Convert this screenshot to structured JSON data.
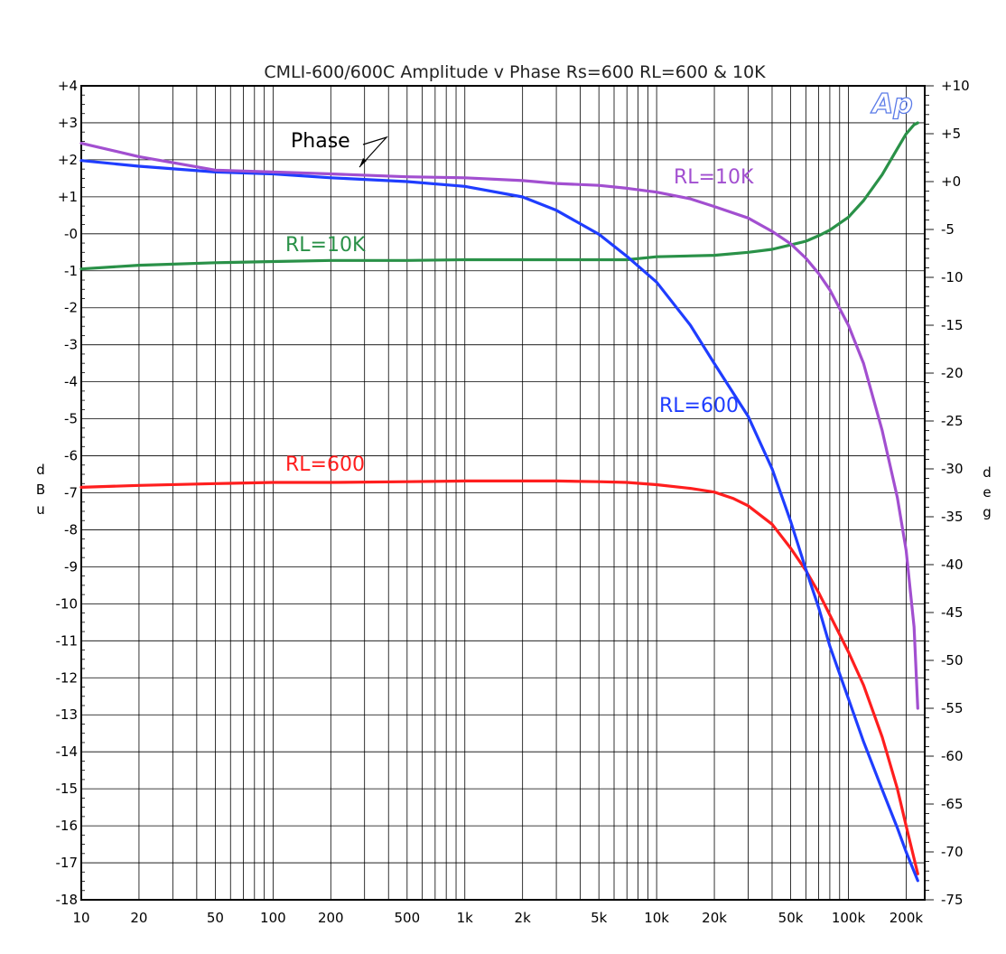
{
  "chart_data": {
    "type": "line",
    "title": "CMLI-600/600C Amplitude v Phase Rs=600  RL=600 & 10K",
    "xscale": "log",
    "xlim": [
      10,
      250000
    ],
    "ylim_left": [
      -18,
      4
    ],
    "ylim_right": [
      -75,
      10
    ],
    "ylabel_left": "dBu",
    "ylabel_right": "deg",
    "grid": true,
    "x_ticks": [
      {
        "value": 10,
        "label": "10"
      },
      {
        "value": 20,
        "label": "20"
      },
      {
        "value": 50,
        "label": "50"
      },
      {
        "value": 100,
        "label": "100"
      },
      {
        "value": 200,
        "label": "200"
      },
      {
        "value": 500,
        "label": "500"
      },
      {
        "value": 1000,
        "label": "1k"
      },
      {
        "value": 2000,
        "label": "2k"
      },
      {
        "value": 5000,
        "label": "5k"
      },
      {
        "value": 10000,
        "label": "10k"
      },
      {
        "value": 20000,
        "label": "20k"
      },
      {
        "value": 50000,
        "label": "50k"
      },
      {
        "value": 100000,
        "label": "100k"
      },
      {
        "value": 200000,
        "label": "200k"
      }
    ],
    "y_ticks_left": [
      {
        "value": 4,
        "label": "+4"
      },
      {
        "value": 3,
        "label": "+3"
      },
      {
        "value": 2,
        "label": "+2"
      },
      {
        "value": 1,
        "label": "+1"
      },
      {
        "value": 0,
        "label": "-0"
      },
      {
        "value": -1,
        "label": "-1"
      },
      {
        "value": -2,
        "label": "-2"
      },
      {
        "value": -3,
        "label": "-3"
      },
      {
        "value": -4,
        "label": "-4"
      },
      {
        "value": -5,
        "label": "-5"
      },
      {
        "value": -6,
        "label": "-6"
      },
      {
        "value": -7,
        "label": "-7"
      },
      {
        "value": -8,
        "label": "-8"
      },
      {
        "value": -9,
        "label": "-9"
      },
      {
        "value": -10,
        "label": "-10"
      },
      {
        "value": -11,
        "label": "-11"
      },
      {
        "value": -12,
        "label": "-12"
      },
      {
        "value": -13,
        "label": "-13"
      },
      {
        "value": -14,
        "label": "-14"
      },
      {
        "value": -15,
        "label": "-15"
      },
      {
        "value": -16,
        "label": "-16"
      },
      {
        "value": -17,
        "label": "-17"
      },
      {
        "value": -18,
        "label": "-18"
      }
    ],
    "y_ticks_right": [
      {
        "value": 10,
        "label": "+10"
      },
      {
        "value": 5,
        "label": "+5"
      },
      {
        "value": 0,
        "label": "+0"
      },
      {
        "value": -5,
        "label": "-5"
      },
      {
        "value": -10,
        "label": "-10"
      },
      {
        "value": -15,
        "label": "-15"
      },
      {
        "value": -20,
        "label": "-20"
      },
      {
        "value": -25,
        "label": "-25"
      },
      {
        "value": -30,
        "label": "-30"
      },
      {
        "value": -35,
        "label": "-35"
      },
      {
        "value": -40,
        "label": "-40"
      },
      {
        "value": -45,
        "label": "-45"
      },
      {
        "value": -50,
        "label": "-50"
      },
      {
        "value": -55,
        "label": "-55"
      },
      {
        "value": -60,
        "label": "-60"
      },
      {
        "value": -65,
        "label": "-65"
      },
      {
        "value": -70,
        "label": "-70"
      },
      {
        "value": -75,
        "label": "-75"
      }
    ],
    "series": [
      {
        "name": "RL=600",
        "axis": "left",
        "color": "#ff1e1e",
        "x": [
          10,
          20,
          50,
          100,
          200,
          500,
          1000,
          2000,
          3000,
          5000,
          7000,
          10000,
          15000,
          20000,
          25000,
          30000,
          40000,
          50000,
          60000,
          70000,
          80000,
          100000,
          120000,
          150000,
          180000,
          200000,
          230000
        ],
        "y": [
          -6.85,
          -6.8,
          -6.75,
          -6.72,
          -6.72,
          -6.7,
          -6.68,
          -6.68,
          -6.68,
          -6.7,
          -6.72,
          -6.78,
          -6.88,
          -6.98,
          -7.15,
          -7.35,
          -7.85,
          -8.5,
          -9.1,
          -9.7,
          -10.3,
          -11.3,
          -12.2,
          -13.6,
          -15.0,
          -16.0,
          -17.3
        ]
      },
      {
        "name": "RL=10K",
        "axis": "left",
        "color": "#2a9148",
        "x": [
          10,
          20,
          50,
          100,
          200,
          500,
          1000,
          2000,
          5000,
          7000,
          10000,
          20000,
          30000,
          40000,
          50000,
          60000,
          70000,
          80000,
          100000,
          120000,
          150000,
          180000,
          200000,
          220000,
          230000
        ],
        "y": [
          -0.95,
          -0.85,
          -0.78,
          -0.75,
          -0.72,
          -0.72,
          -0.7,
          -0.7,
          -0.7,
          -0.7,
          -0.62,
          -0.58,
          -0.5,
          -0.42,
          -0.3,
          -0.2,
          -0.05,
          0.1,
          0.45,
          0.9,
          1.6,
          2.3,
          2.7,
          2.95,
          3.0
        ]
      },
      {
        "name": "Phase RL=600",
        "axis": "right",
        "color": "#1f3dff",
        "x": [
          10,
          20,
          50,
          100,
          200,
          500,
          1000,
          2000,
          3000,
          5000,
          7000,
          10000,
          15000,
          20000,
          30000,
          40000,
          50000,
          60000,
          70000,
          80000,
          100000,
          120000,
          150000,
          180000,
          200000,
          230000
        ],
        "y": [
          2.2,
          1.6,
          1.0,
          0.8,
          0.4,
          0.0,
          -0.5,
          -1.6,
          -3.0,
          -5.5,
          -7.8,
          -10.5,
          -15.0,
          -19.0,
          -24.5,
          -30.0,
          -35.5,
          -40.5,
          -44.5,
          -48.5,
          -54.0,
          -58.5,
          -63.5,
          -67.5,
          -70.0,
          -73.0
        ]
      },
      {
        "name": "Phase RL=10K",
        "axis": "right",
        "color": "#a24fd0",
        "x": [
          10,
          20,
          50,
          100,
          200,
          500,
          1000,
          2000,
          3000,
          5000,
          7000,
          10000,
          15000,
          20000,
          30000,
          40000,
          50000,
          60000,
          70000,
          80000,
          100000,
          120000,
          150000,
          180000,
          200000,
          220000,
          230000
        ],
        "y": [
          4.0,
          2.6,
          1.2,
          1.0,
          0.8,
          0.5,
          0.4,
          0.1,
          -0.2,
          -0.4,
          -0.7,
          -1.1,
          -1.8,
          -2.6,
          -3.8,
          -5.2,
          -6.5,
          -8.0,
          -9.6,
          -11.3,
          -15.0,
          -19.0,
          -26.0,
          -33.0,
          -38.5,
          -46.5,
          -55.0
        ]
      }
    ],
    "annotations": [
      {
        "text": "Phase",
        "color": "#000000"
      },
      {
        "text": "RL=10K",
        "color": "#a24fd0"
      },
      {
        "text": "RL=10K",
        "color": "#2a9148"
      },
      {
        "text": "RL=600",
        "color": "#1f3dff"
      },
      {
        "text": "RL=600",
        "color": "#ff1e1e"
      }
    ],
    "logo": "Ap"
  }
}
